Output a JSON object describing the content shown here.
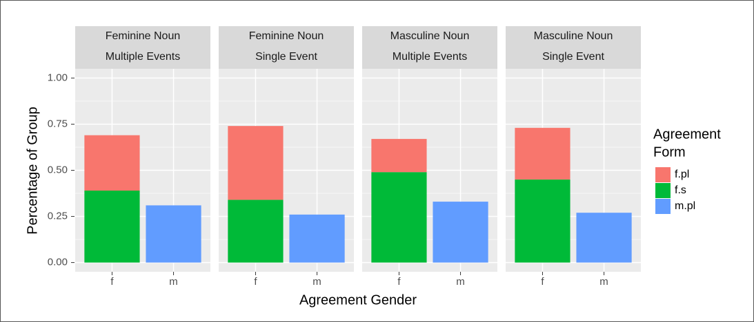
{
  "chart_data": {
    "type": "bar",
    "stacked": true,
    "xlabel": "Agreement Gender",
    "ylabel": "Percentage of Group",
    "legend_title": [
      "Agreement",
      "Form"
    ],
    "legend_position": "right",
    "grid": true,
    "series": [
      {
        "name": "f.pl",
        "color": "#F8766D"
      },
      {
        "name": "f.s",
        "color": "#00BA38"
      },
      {
        "name": "m.pl",
        "color": "#619CFF"
      }
    ],
    "ylim": [
      -0.05,
      1.05
    ],
    "yticks": [
      {
        "value": 0,
        "label": "0.00"
      },
      {
        "value": 0.25,
        "label": "0.25"
      },
      {
        "value": 0.5,
        "label": "0.50"
      },
      {
        "value": 0.75,
        "label": "0.75"
      },
      {
        "value": 1,
        "label": "1.00"
      }
    ],
    "facets": [
      {
        "title": [
          "Feminine Noun",
          "Multiple Events"
        ],
        "categories": [
          "f",
          "m"
        ],
        "values": [
          [
            0.3,
            null
          ],
          [
            0.39,
            null
          ],
          [
            null,
            0.31
          ]
        ]
      },
      {
        "title": [
          "Feminine Noun",
          "Single Event"
        ],
        "categories": [
          "f",
          "m"
        ],
        "values": [
          [
            0.4,
            null
          ],
          [
            0.34,
            null
          ],
          [
            null,
            0.26
          ]
        ]
      },
      {
        "title": [
          "Masculine Noun",
          "Multiple Events"
        ],
        "categories": [
          "f",
          "m"
        ],
        "values": [
          [
            0.18,
            null
          ],
          [
            0.49,
            null
          ],
          [
            null,
            0.33
          ]
        ]
      },
      {
        "title": [
          "Masculine Noun",
          "Single Event"
        ],
        "categories": [
          "f",
          "m"
        ],
        "values": [
          [
            0.28,
            null
          ],
          [
            0.45,
            null
          ],
          [
            null,
            0.27
          ]
        ]
      }
    ]
  }
}
